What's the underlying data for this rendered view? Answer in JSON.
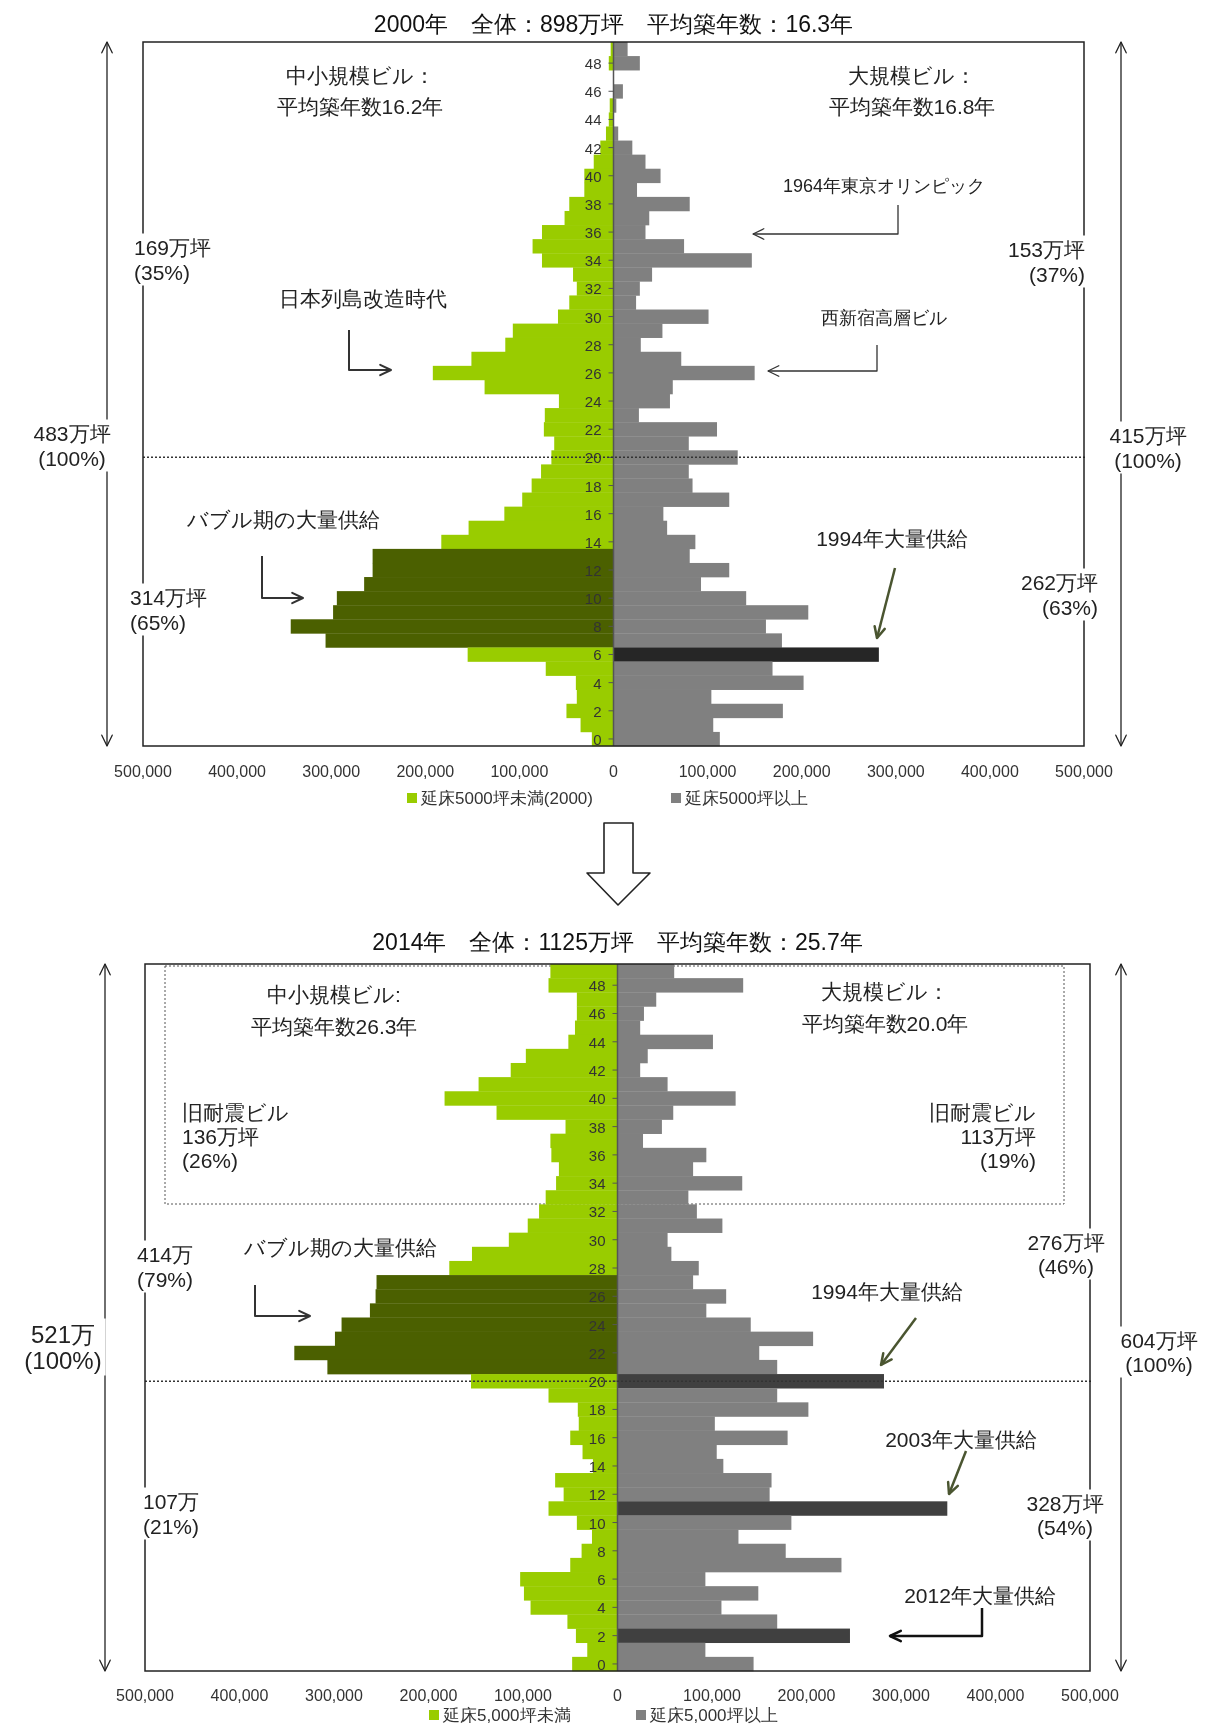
{
  "chart_data": [
    {
      "type": "bar",
      "orientation": "horizontal",
      "title": "2000年　全体：898万坪　平均築年数：16.3年",
      "categories": [
        null,
        "48",
        null,
        "46",
        null,
        "44",
        null,
        "42",
        null,
        "40",
        null,
        "38",
        null,
        "36",
        null,
        "34",
        null,
        "32",
        null,
        "30",
        null,
        "28",
        null,
        "26",
        null,
        "24",
        null,
        "22",
        null,
        "20",
        null,
        "18",
        null,
        "16",
        null,
        "14",
        null,
        "12",
        null,
        "10",
        null,
        "8",
        null,
        "6",
        null,
        "4",
        null,
        "2",
        null,
        "0"
      ],
      "series": [
        {
          "name": "延床5000坪未満(2000)",
          "color": "#99cc00",
          "colors": [
            "#99cc00",
            "#99cc00",
            null,
            null,
            "#99cc00",
            "#99cc00",
            "#99cc00",
            "#99cc00",
            "#99cc00",
            "#99cc00",
            "#99cc00",
            "#99cc00",
            "#99cc00",
            "#99cc00",
            "#99cc00",
            "#99cc00",
            "#99cc00",
            "#99cc00",
            "#99cc00",
            "#99cc00",
            "#99cc00",
            "#99cc00",
            "#99cc00",
            "#99cc00",
            "#99cc00",
            "#99cc00",
            "#99cc00",
            "#99cc00",
            "#99cc00",
            "#99cc00",
            "#99cc00",
            "#99cc00",
            "#99cc00",
            "#99cc00",
            "#99cc00",
            "#99cc00",
            "#4b6000",
            "#4b6000",
            "#4b6000",
            "#4b6000",
            "#4b6000",
            "#4b6000",
            "#4b6000",
            "#99cc00",
            "#99cc00",
            "#99cc00",
            "#99cc00",
            "#99cc00",
            "#99cc00",
            "#99cc00"
          ],
          "values": [
            -3000,
            -5000,
            null,
            null,
            -4000,
            -5000,
            -8000,
            -14000,
            -21000,
            -31000,
            -31000,
            -47000,
            -52000,
            -76000,
            -86000,
            -76000,
            -43000,
            -39000,
            -47000,
            -59000,
            -107000,
            -115000,
            -151000,
            -192000,
            -137000,
            -58000,
            -73000,
            -74000,
            -63000,
            -66000,
            -77000,
            -87000,
            -97000,
            -116000,
            -154000,
            -183000,
            -256000,
            -256000,
            -265000,
            -294000,
            -298000,
            -343000,
            -306000,
            -155000,
            -72000,
            -40000,
            -39000,
            -50000,
            -35000,
            -23000
          ]
        },
        {
          "name": "延床5000坪以上",
          "color": "#808080",
          "colors": [
            "#808080",
            "#808080",
            "#808080",
            "#808080",
            "#808080",
            null,
            "#808080",
            "#808080",
            "#808080",
            "#808080",
            "#808080",
            "#808080",
            "#808080",
            "#808080",
            "#808080",
            "#808080",
            "#808080",
            "#808080",
            "#808080",
            "#808080",
            "#808080",
            "#808080",
            "#808080",
            "#808080",
            "#808080",
            "#808080",
            "#808080",
            "#808080",
            "#808080",
            "#808080",
            "#808080",
            "#808080",
            "#808080",
            "#808080",
            "#808080",
            "#808080",
            "#808080",
            "#808080",
            "#808080",
            "#808080",
            "#808080",
            "#808080",
            "#808080",
            "#262626",
            "#808080",
            "#808080",
            "#808080",
            "#808080",
            "#808080",
            "#808080"
          ],
          "values": [
            15000,
            28000,
            0,
            10000,
            3000,
            null,
            5000,
            20000,
            34000,
            50000,
            25000,
            81000,
            38000,
            34000,
            75000,
            147000,
            41000,
            28000,
            24000,
            101000,
            52000,
            29000,
            72000,
            150000,
            63000,
            60000,
            27000,
            110000,
            80000,
            132000,
            80000,
            84000,
            123000,
            53000,
            57000,
            87000,
            81000,
            123000,
            93000,
            141000,
            207000,
            162000,
            179000,
            282000,
            169000,
            202000,
            104000,
            180000,
            106000,
            113000
          ]
        }
      ],
      "xlim": [
        -500000,
        500000
      ],
      "xticks": [
        {
          "value": -500000,
          "label": "500,000"
        },
        {
          "value": -400000,
          "label": "400,000"
        },
        {
          "value": -300000,
          "label": "300,000"
        },
        {
          "value": -200000,
          "label": "200,000"
        },
        {
          "value": -100000,
          "label": "100,000"
        },
        0,
        {
          "value": 100000,
          "label": "100,000"
        },
        {
          "value": 200000,
          "label": "200,000"
        },
        {
          "value": 300000,
          "label": "300,000"
        },
        {
          "value": 400000,
          "label": "400,000"
        },
        {
          "value": 500000,
          "label": "500,000"
        }
      ],
      "legend": "bottom",
      "ref_lines": [
        {
          "axis": "y",
          "value": "20",
          "line_style": "dotted"
        }
      ],
      "stacked": true,
      "annotations": [
        "中小規模ビル：",
        "平均築年数16.2年",
        "大規模ビル：",
        "平均築年数16.8年",
        "169万坪\n(35%)",
        "314万坪\n(65%)",
        "483万坪\n(100%)",
        "153万坪\n(37%)",
        "262万坪\n(63%)",
        "415万坪\n(100%)",
        "日本列島改造時代",
        "バブル期の大量供給",
        "1964年東京オリンピック",
        "西新宿高層ビル",
        "1994年大量供給"
      ]
    },
    {
      "type": "bar",
      "orientation": "horizontal",
      "title": "2014年　全体：1125万坪　平均築年数：25.7年",
      "categories": [
        null,
        "48",
        null,
        "46",
        null,
        "44",
        null,
        "42",
        null,
        "40",
        null,
        "38",
        null,
        "36",
        null,
        "34",
        null,
        "32",
        null,
        "30",
        null,
        "28",
        null,
        "26",
        null,
        "24",
        null,
        "22",
        null,
        "20",
        null,
        "18",
        null,
        "16",
        null,
        "14",
        null,
        "12",
        null,
        "10",
        null,
        "8",
        null,
        "6",
        null,
        "4",
        null,
        "2",
        null,
        "0"
      ],
      "series": [
        {
          "name": "延床5,000坪未満",
          "color": "#99cc00",
          "colors": [
            "#99cc00",
            "#99cc00",
            "#99cc00",
            "#99cc00",
            "#99cc00",
            "#99cc00",
            "#99cc00",
            "#99cc00",
            "#99cc00",
            "#99cc00",
            "#99cc00",
            "#99cc00",
            "#99cc00",
            "#99cc00",
            "#99cc00",
            "#99cc00",
            "#99cc00",
            "#99cc00",
            "#99cc00",
            "#99cc00",
            "#99cc00",
            "#99cc00",
            "#4b6000",
            "#4b6000",
            "#4b6000",
            "#4b6000",
            "#4b6000",
            "#4b6000",
            "#4b6000",
            "#99cc00",
            "#99cc00",
            "#99cc00",
            "#99cc00",
            "#99cc00",
            "#99cc00",
            "#99cc00",
            "#99cc00",
            "#99cc00",
            "#99cc00",
            "#99cc00",
            "#99cc00",
            "#99cc00",
            "#99cc00",
            "#99cc00",
            "#99cc00",
            "#99cc00",
            "#99cc00",
            "#99cc00",
            "#99cc00",
            "#99cc00"
          ],
          "values": [
            -71000,
            -73000,
            -43000,
            -43000,
            -45000,
            -52000,
            -97000,
            -113000,
            -147000,
            -183000,
            -128000,
            -55000,
            -71000,
            -70000,
            -62000,
            -65000,
            -76000,
            -83000,
            -95000,
            -115000,
            -154000,
            -178000,
            -255000,
            -256000,
            -262000,
            -292000,
            -299000,
            -342000,
            -307000,
            -155000,
            -73000,
            -42000,
            -41000,
            -50000,
            -37000,
            -26000,
            -66000,
            -57000,
            -73000,
            -43000,
            -27000,
            -38000,
            -50000,
            -103000,
            -99000,
            -92000,
            -53000,
            -44000,
            -32000,
            -48000
          ]
        },
        {
          "name": "延床5,000坪以上",
          "color": "#808080",
          "colors": [
            "#808080",
            "#808080",
            "#808080",
            "#808080",
            "#808080",
            "#808080",
            "#808080",
            "#808080",
            "#808080",
            "#808080",
            "#808080",
            "#808080",
            "#808080",
            "#808080",
            "#808080",
            "#808080",
            "#808080",
            "#808080",
            "#808080",
            "#808080",
            "#808080",
            "#808080",
            "#808080",
            "#808080",
            "#808080",
            "#808080",
            "#808080",
            "#808080",
            "#808080",
            "#404040",
            "#808080",
            "#808080",
            "#808080",
            "#808080",
            "#808080",
            "#808080",
            "#808080",
            "#808080",
            "#404040",
            "#808080",
            "#808080",
            "#808080",
            "#808080",
            "#808080",
            "#808080",
            "#808080",
            "#808080",
            "#404040",
            "#808080",
            "#808080"
          ],
          "values": [
            60000,
            133000,
            41000,
            28000,
            24000,
            101000,
            32000,
            24000,
            53000,
            125000,
            59000,
            47000,
            27000,
            94000,
            80000,
            132000,
            75000,
            84000,
            111000,
            53000,
            57000,
            86000,
            80000,
            115000,
            94000,
            141000,
            207000,
            150000,
            169000,
            282000,
            169000,
            202000,
            103000,
            180000,
            105000,
            112000,
            163000,
            161000,
            349000,
            184000,
            128000,
            178000,
            237000,
            93000,
            149000,
            110000,
            169000,
            246000,
            93000,
            144000
          ]
        }
      ],
      "xlim": [
        -500000,
        500000
      ],
      "xticks": [
        {
          "value": -500000,
          "label": "500,000"
        },
        {
          "value": -400000,
          "label": "400,000"
        },
        {
          "value": -300000,
          "label": "300,000"
        },
        {
          "value": -200000,
          "label": "200,000"
        },
        {
          "value": -100000,
          "label": "100,000"
        },
        0,
        {
          "value": 100000,
          "label": "100,000"
        },
        {
          "value": 200000,
          "label": "200,000"
        },
        {
          "value": 300000,
          "label": "300,000"
        },
        {
          "value": 400000,
          "label": "400,000"
        },
        {
          "value": 500000,
          "label": "500,000"
        }
      ],
      "legend": "bottom",
      "ref_lines": [
        {
          "axis": "y",
          "value": "20",
          "line_style": "dotted"
        }
      ],
      "stacked": true,
      "annotations": [
        "中小規模ビル:",
        "平均築年数26.3年",
        "大規模ビル：",
        "平均築年数20.0年",
        "旧耐震ビル\n136万坪\n(26%)",
        "旧耐震ビル\n113万坪\n(19%)",
        "414万\n(79%)",
        "107万\n(21%)",
        "521万\n(100%)",
        "276万坪\n(46%)",
        "328万坪\n(54%)",
        "604万坪\n(100%)",
        "バブル期の大量供給",
        "1994年大量供給",
        "2003年大量供給",
        "2012年大量供給"
      ]
    }
  ]
}
